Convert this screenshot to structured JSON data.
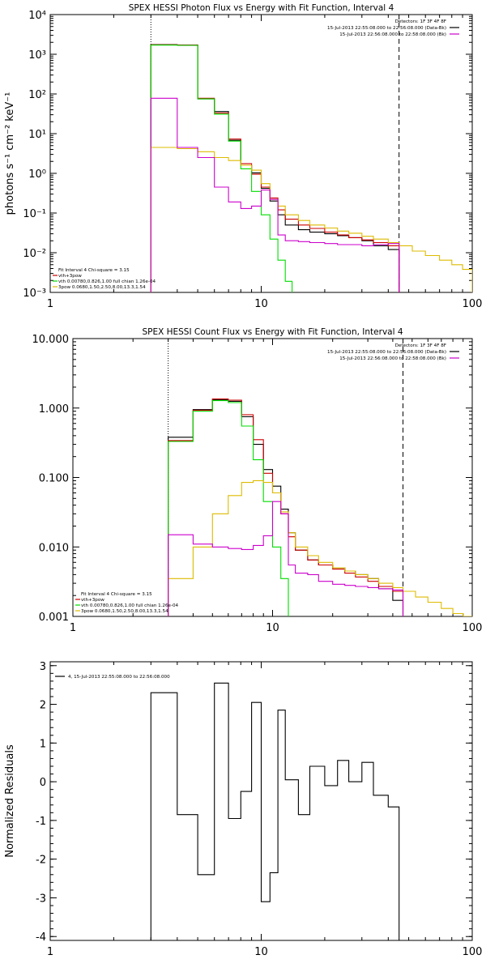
{
  "colors": {
    "data": "#000000",
    "total": "#cc0000",
    "thermal": "#00dd00",
    "powerlaw": "#ddbb00",
    "background": "#cc00cc"
  },
  "chart_data": [
    {
      "type": "line",
      "title": "SPEX HESSI Photon Flux vs Energy with Fit Function, Interval 4",
      "xlabel": "",
      "ylabel": "photons s⁻¹ cm⁻² keV⁻¹",
      "xscale": "log",
      "yscale": "log",
      "xlim": [
        1,
        100
      ],
      "ylim": [
        0.001,
        10000
      ],
      "xticks": [
        {
          "v": 1,
          "label": "1"
        },
        {
          "v": 10,
          "label": "10"
        },
        {
          "v": 100,
          "label": "100"
        }
      ],
      "yticks": [
        {
          "v": 0.001,
          "label": "10⁻³"
        },
        {
          "v": 0.01,
          "label": "10⁻²"
        },
        {
          "v": 0.1,
          "label": "10⁻¹"
        },
        {
          "v": 1,
          "label": "10⁰"
        },
        {
          "v": 10,
          "label": "10¹"
        },
        {
          "v": 100,
          "label": "10²"
        },
        {
          "v": 1000,
          "label": "10³"
        },
        {
          "v": 10000,
          "label": "10⁴"
        }
      ],
      "vlines": [
        {
          "x": 3,
          "style": "dotted"
        },
        {
          "x": 45,
          "style": "dashed"
        }
      ],
      "legend_tr": [
        {
          "text": "Detectors: 1F 3F 4F 8F",
          "color": ""
        },
        {
          "text": "15-Jul-2013 22:55:08.000 to 22:56:08.000 (Data-Bk)",
          "color": "data"
        },
        {
          "text": "15-Jul-2013 22:56:08.000 to 22:58:08.000 (Bk)",
          "color": "background"
        }
      ],
      "legend_bl": [
        {
          "text": "Fit Interval 4   Chi-square = 3.15",
          "color": ""
        },
        {
          "text": "vth+3pow",
          "color": "total"
        },
        {
          "text": "vth 0.00780,0.826,1.00   full chian 1.26e-04",
          "color": "thermal"
        },
        {
          "text": "3pow 0.0680,1.50,2.50,8.00,13.3,1.54",
          "color": "powerlaw"
        }
      ],
      "series": [
        {
          "color": "data",
          "edges": [
            3,
            4,
            5,
            6,
            7,
            8,
            9,
            10,
            11,
            12,
            13,
            15,
            17,
            20,
            23,
            26,
            30,
            34,
            40,
            45
          ],
          "values": [
            1750,
            1720,
            75,
            36,
            6.8,
            1.6,
            1.03,
            0.42,
            0.2,
            0.09,
            0.05,
            0.038,
            0.033,
            0.03,
            0.027,
            0.024,
            0.02,
            0.015,
            0.012
          ]
        },
        {
          "color": "total",
          "edges": [
            3,
            4,
            5,
            6,
            7,
            8,
            9,
            10,
            11,
            12,
            13,
            15,
            17,
            20,
            23,
            26,
            30,
            34,
            40,
            45
          ],
          "values": [
            1730,
            1700,
            78,
            33,
            7.3,
            1.75,
            0.95,
            0.45,
            0.24,
            0.12,
            0.07,
            0.05,
            0.041,
            0.033,
            0.028,
            0.024,
            0.021,
            0.018,
            0.015
          ]
        },
        {
          "color": "thermal",
          "edges": [
            3,
            4,
            5,
            6,
            7,
            8,
            9,
            10,
            11,
            12,
            13,
            14
          ],
          "values": [
            1700,
            1680,
            75,
            31,
            6.5,
            1.3,
            0.35,
            0.09,
            0.022,
            0.0065,
            0.0019
          ]
        },
        {
          "color": "powerlaw",
          "edges": [
            3,
            4,
            5,
            6,
            7,
            8,
            9,
            10,
            11,
            12,
            13,
            15,
            17,
            20,
            23,
            26,
            30,
            34,
            40,
            45,
            52,
            60,
            70,
            80,
            90,
            100
          ],
          "values": [
            4.5,
            4.2,
            3.5,
            2.5,
            2.1,
            1.6,
            1.2,
            0.55,
            0.22,
            0.15,
            0.09,
            0.065,
            0.05,
            0.042,
            0.035,
            0.031,
            0.026,
            0.022,
            0.018,
            0.015,
            0.011,
            0.0085,
            0.0065,
            0.005,
            0.0038
          ]
        },
        {
          "color": "background",
          "edges": [
            3,
            4,
            5,
            6,
            7,
            8,
            9,
            10,
            11,
            12,
            13,
            15,
            17,
            20,
            23,
            26,
            30,
            34,
            40,
            45
          ],
          "values": [
            78,
            4.5,
            2.5,
            0.45,
            0.19,
            0.13,
            0.15,
            0.38,
            0.22,
            0.028,
            0.02,
            0.019,
            0.018,
            0.017,
            0.016,
            0.016,
            0.015,
            0.016,
            0.017
          ]
        }
      ]
    },
    {
      "type": "line",
      "title": "SPEX HESSI Count Flux vs Energy with Fit Function, Interval 4",
      "xlabel": "",
      "ylabel": "",
      "xscale": "log",
      "yscale": "log",
      "xlim": [
        1,
        100
      ],
      "ylim": [
        0.001,
        10
      ],
      "xticks": [
        {
          "v": 1,
          "label": "1"
        },
        {
          "v": 10,
          "label": "10"
        },
        {
          "v": 100,
          "label": "100"
        }
      ],
      "yticks": [
        {
          "v": 0.001,
          "label": "0.001"
        },
        {
          "v": 0.01,
          "label": "0.010"
        },
        {
          "v": 0.1,
          "label": "0.100"
        },
        {
          "v": 1,
          "label": "1.000"
        },
        {
          "v": 10,
          "label": "10.000"
        }
      ],
      "vlines": [
        {
          "x": 3,
          "style": "dotted"
        },
        {
          "x": 45,
          "style": "dashed"
        }
      ],
      "legend_tr": [
        {
          "text": "Detectors: 1F 3F 4F 8F",
          "color": ""
        },
        {
          "text": "15-Jul-2013 22:55:08.000 to 22:56:08.000 (Data-Bk)",
          "color": "data"
        },
        {
          "text": "15-Jul-2013 22:56:08.000 to 22:58:08.000 (Bk)",
          "color": "background"
        }
      ],
      "legend_bl": [
        {
          "text": "Fit Interval 4   Chi-square = 3.15",
          "color": ""
        },
        {
          "text": "vth+3pow",
          "color": "total"
        },
        {
          "text": "vth 0.00780,0.826,1.00   full chian 1.26e-04",
          "color": "thermal"
        },
        {
          "text": "3pow 0.0680,1.50,2.50,8.00,13.3,1.54",
          "color": "powerlaw"
        }
      ],
      "series": [
        {
          "color": "data",
          "edges": [
            3,
            4,
            5,
            6,
            7,
            8,
            9,
            10,
            11,
            12,
            13,
            15,
            17,
            20,
            23,
            26,
            30,
            34,
            40,
            45
          ],
          "values": [
            0.38,
            0.95,
            1.32,
            1.25,
            0.75,
            0.3,
            0.13,
            0.075,
            0.035,
            0.016,
            0.009,
            0.0065,
            0.0055,
            0.005,
            0.0045,
            0.004,
            0.0035,
            0.0025,
            0.0017
          ]
        },
        {
          "color": "total",
          "edges": [
            3,
            4,
            5,
            6,
            7,
            8,
            9,
            10,
            11,
            12,
            13,
            15,
            17,
            20,
            23,
            26,
            30,
            34,
            40,
            45
          ],
          "values": [
            0.34,
            0.93,
            1.35,
            1.3,
            0.8,
            0.35,
            0.115,
            0.06,
            0.03,
            0.014,
            0.009,
            0.0065,
            0.0055,
            0.0048,
            0.0042,
            0.0037,
            0.0032,
            0.0027,
            0.0023
          ]
        },
        {
          "color": "thermal",
          "edges": [
            3,
            4,
            5,
            6,
            7,
            8,
            9,
            10,
            11,
            12,
            13
          ],
          "values": [
            0.33,
            0.9,
            1.28,
            1.2,
            0.55,
            0.18,
            0.045,
            0.01,
            0.0035,
            0.0009
          ]
        },
        {
          "color": "powerlaw",
          "edges": [
            3,
            4,
            5,
            6,
            7,
            8,
            9,
            10,
            11,
            12,
            13,
            15,
            17,
            20,
            23,
            26,
            30,
            34,
            40,
            45,
            52,
            60,
            70,
            80,
            90,
            100
          ],
          "values": [
            0.0035,
            0.01,
            0.03,
            0.055,
            0.085,
            0.09,
            0.085,
            0.06,
            0.032,
            0.016,
            0.01,
            0.0075,
            0.006,
            0.005,
            0.0045,
            0.004,
            0.0035,
            0.003,
            0.0026,
            0.0023,
            0.0019,
            0.0016,
            0.0013,
            0.0011,
            0.001
          ]
        },
        {
          "color": "background",
          "edges": [
            3,
            4,
            5,
            6,
            7,
            8,
            9,
            10,
            11,
            12,
            13,
            15,
            17,
            20,
            23,
            26,
            30,
            34,
            40,
            45
          ],
          "values": [
            0.015,
            0.011,
            0.01,
            0.0095,
            0.0092,
            0.0105,
            0.0145,
            0.045,
            0.03,
            0.0055,
            0.0042,
            0.004,
            0.0032,
            0.0029,
            0.0028,
            0.0027,
            0.0026,
            0.0025,
            0.0024
          ]
        }
      ]
    },
    {
      "type": "line",
      "title": "",
      "xlabel": "",
      "ylabel": "Normalized Residuals",
      "xscale": "log",
      "yscale": "linear",
      "xlim": [
        1,
        100
      ],
      "ylim": [
        -4.1,
        3.1
      ],
      "xticks": [
        {
          "v": 1,
          "label": "1"
        },
        {
          "v": 10,
          "label": "10"
        },
        {
          "v": 100,
          "label": "100"
        }
      ],
      "yticks": [
        {
          "v": -4,
          "label": "-4"
        },
        {
          "v": -3,
          "label": "-3"
        },
        {
          "v": -2,
          "label": "-2"
        },
        {
          "v": -1,
          "label": "-1"
        },
        {
          "v": 0,
          "label": "0"
        },
        {
          "v": 1,
          "label": "1"
        },
        {
          "v": 2,
          "label": "2"
        },
        {
          "v": 3,
          "label": "3"
        }
      ],
      "vlines": [],
      "legend_tl": [
        {
          "text": "4, 15-Jul-2013 22:55:08.000 to 22:56:08.000",
          "color": "data"
        }
      ],
      "series": [
        {
          "color": "data",
          "edges": [
            3,
            4,
            5,
            6,
            7,
            8,
            9,
            10,
            11,
            12,
            13,
            15,
            17,
            20,
            23,
            26,
            30,
            34,
            40,
            45
          ],
          "values": [
            2.3,
            -0.85,
            -2.4,
            2.55,
            -0.95,
            -0.25,
            2.05,
            -3.1,
            -2.35,
            1.85,
            0.05,
            -0.85,
            0.4,
            -0.1,
            0.55,
            0.0,
            0.5,
            -0.35,
            -0.65
          ]
        }
      ]
    }
  ]
}
